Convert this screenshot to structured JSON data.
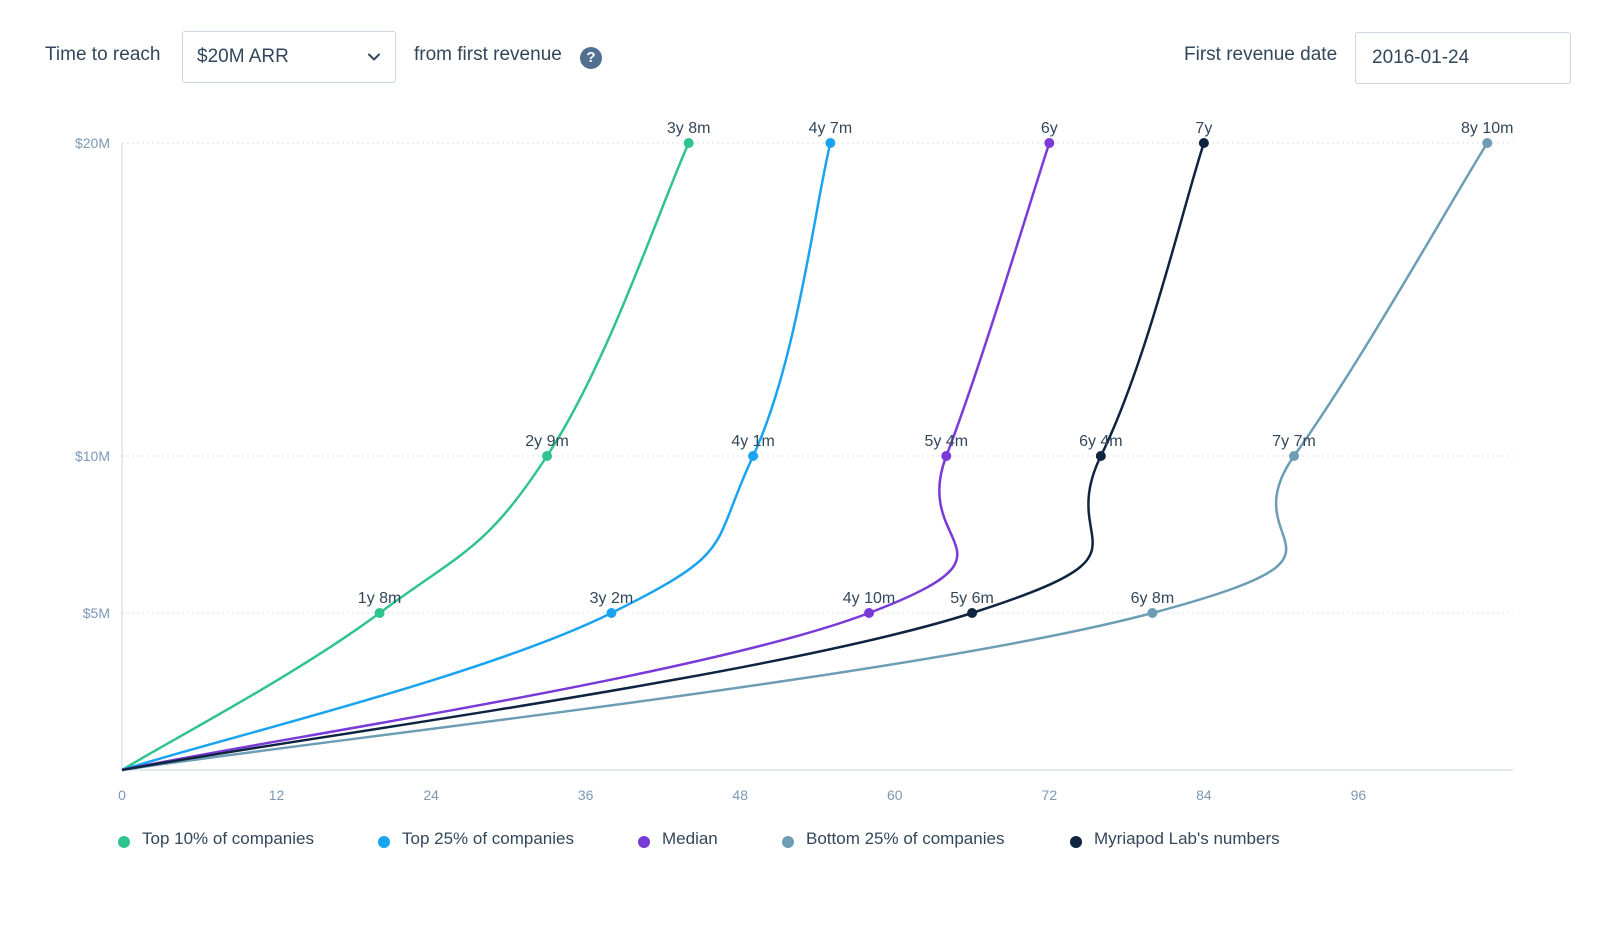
{
  "controls": {
    "prefix_label": "Time to reach",
    "milestone_select": {
      "value": "$20M ARR"
    },
    "suffix_label": "from first revenue",
    "help_glyph": "?",
    "date_label": "First revenue date",
    "date_input": {
      "value": "2016-01-24"
    }
  },
  "colors": {
    "top10": "#2fc38e",
    "top25": "#1aa3f0",
    "median": "#7a3ad8",
    "bottom25": "#6d9db5",
    "myriapod": "#0e2440",
    "grid": "#d9e1ea",
    "axis": "#cbd6e2"
  },
  "chart_data": {
    "type": "line",
    "xlim": [
      0,
      108
    ],
    "x_ticks": [
      0,
      12,
      24,
      36,
      48,
      60,
      72,
      84,
      96
    ],
    "y_ticks": [
      {
        "value": 5,
        "label": "$5M"
      },
      {
        "value": 10,
        "label": "$10M"
      },
      {
        "value": 20,
        "label": "$20M"
      }
    ],
    "grid": "horizontal dotted",
    "legend_position": "bottom",
    "series": [
      {
        "key": "top10",
        "name": "Top 10% of companies",
        "points": [
          {
            "x": 0,
            "y": 0
          },
          {
            "x": 20,
            "y": 5,
            "label": "1y 8m"
          },
          {
            "x": 33,
            "y": 10,
            "label": "2y 9m"
          },
          {
            "x": 44,
            "y": 20,
            "label": "3y 8m"
          }
        ]
      },
      {
        "key": "top25",
        "name": "Top 25% of companies",
        "points": [
          {
            "x": 0,
            "y": 0
          },
          {
            "x": 38,
            "y": 5,
            "label": "3y 2m"
          },
          {
            "x": 49,
            "y": 10,
            "label": "4y 1m"
          },
          {
            "x": 55,
            "y": 20,
            "label": "4y 7m"
          }
        ]
      },
      {
        "key": "median",
        "name": "Median",
        "points": [
          {
            "x": 0,
            "y": 0
          },
          {
            "x": 58,
            "y": 5,
            "label": "4y 10m"
          },
          {
            "x": 64,
            "y": 10,
            "label": "5y 4m"
          },
          {
            "x": 72,
            "y": 20,
            "label": "6y"
          }
        ]
      },
      {
        "key": "bottom25",
        "name": "Bottom 25% of companies",
        "points": [
          {
            "x": 0,
            "y": 0
          },
          {
            "x": 80,
            "y": 5,
            "label": "6y 8m"
          },
          {
            "x": 91,
            "y": 10,
            "label": "7y 7m"
          },
          {
            "x": 106,
            "y": 20,
            "label": "8y 10m"
          }
        ]
      },
      {
        "key": "myriapod",
        "name": "Myriapod Lab's numbers",
        "points": [
          {
            "x": 0,
            "y": 0
          },
          {
            "x": 66,
            "y": 5,
            "label": "5y 6m"
          },
          {
            "x": 76,
            "y": 10,
            "label": "6y 4m"
          },
          {
            "x": 84,
            "y": 20,
            "label": "7y"
          }
        ]
      }
    ]
  }
}
